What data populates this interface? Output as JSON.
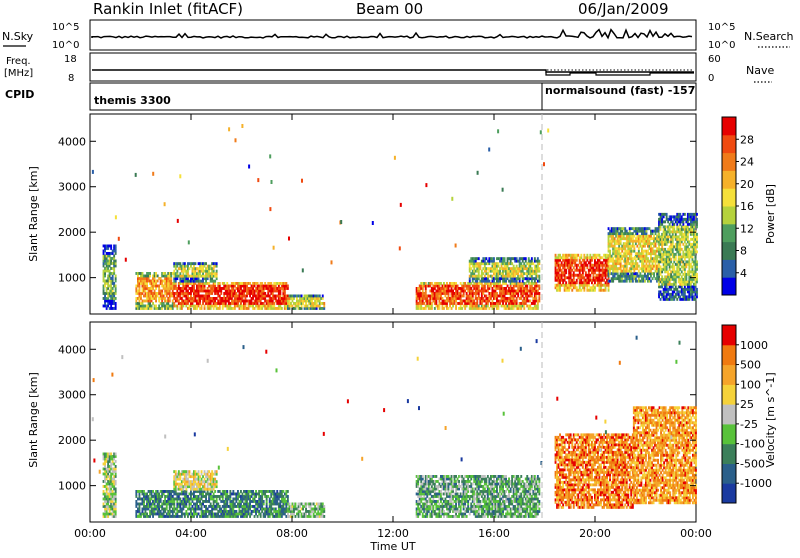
{
  "header": {
    "title": "Rankin Inlet (fitACF)",
    "beam": "Beam 00",
    "date": "06/Jan/2009"
  },
  "noise_panel": {
    "left_label": "N.Sky",
    "right_label": "N.Search",
    "left_ticks": [
      "10^5",
      "10^0"
    ],
    "right_ticks": [
      "10^5",
      "10^0"
    ]
  },
  "freq_panel": {
    "left_label_line1": "Freq.",
    "left_label_line2": "[MHz]",
    "cpid_label": "CPID",
    "right_label": "Nave",
    "left_ticks": [
      "18",
      "8"
    ],
    "right_ticks": [
      "60",
      "0"
    ],
    "cpid_left": "themis 3300",
    "cpid_right": "normalsound (fast) -157"
  },
  "chart_data": [
    {
      "type": "heatmap",
      "name": "Power",
      "ylabel": "Slant Range [km]",
      "xlim": [
        0,
        24
      ],
      "ylim": [
        200,
        4600
      ],
      "yticks": [
        1000,
        2000,
        3000,
        4000
      ],
      "colorbar_label": "Power [dB]",
      "colorbar_ticks": [
        "28",
        "24",
        "20",
        "16",
        "12",
        "8",
        "4"
      ],
      "colorbar_colors": [
        "#0000e6",
        "#2a5fa8",
        "#3a7a54",
        "#4e9e5e",
        "#b5d23c",
        "#f5e03a",
        "#f5b12a",
        "#f07b1a",
        "#f04a10",
        "#e60000"
      ],
      "bands": [
        {
          "t0": 0.5,
          "t1": 1.0,
          "r0": 300,
          "r1": 1700,
          "level": 0.35
        },
        {
          "t0": 1.8,
          "t1": 3.3,
          "r0": 300,
          "r1": 1100,
          "level": 0.7
        },
        {
          "t0": 3.3,
          "t1": 7.8,
          "r0": 300,
          "r1": 900,
          "level": 0.9
        },
        {
          "t0": 3.3,
          "t1": 5.0,
          "r0": 900,
          "r1": 1300,
          "level": 0.5
        },
        {
          "t0": 7.8,
          "t1": 9.3,
          "r0": 300,
          "r1": 600,
          "level": 0.55
        },
        {
          "t0": 12.9,
          "t1": 17.8,
          "r0": 300,
          "r1": 900,
          "level": 0.85
        },
        {
          "t0": 15.0,
          "t1": 17.8,
          "r0": 900,
          "r1": 1400,
          "level": 0.5
        },
        {
          "t0": 18.4,
          "t1": 20.5,
          "r0": 700,
          "r1": 1500,
          "level": 0.9
        },
        {
          "t0": 20.5,
          "t1": 22.5,
          "r0": 900,
          "r1": 2100,
          "level": 0.55
        },
        {
          "t0": 22.5,
          "t1": 24.0,
          "r0": 500,
          "r1": 2400,
          "level": 0.45
        }
      ]
    },
    {
      "type": "heatmap",
      "name": "Velocity",
      "ylabel": "Slant Range [km]",
      "xlabel": "Time UT",
      "xlim": [
        0,
        24
      ],
      "ylim": [
        200,
        4600
      ],
      "yticks": [
        1000,
        2000,
        3000,
        4000
      ],
      "xticks": [
        "00:00",
        "04:00",
        "08:00",
        "12:00",
        "16:00",
        "20:00",
        "00:00"
      ],
      "colorbar_label": "Velocity [m s^-1]",
      "colorbar_ticks": [
        "1000",
        "500",
        "100",
        "25",
        "-25",
        "-100",
        "-500",
        "-1000"
      ],
      "colorbar_colors": [
        "#1a3aa0",
        "#2a5f8a",
        "#3b7f5a",
        "#58c23a",
        "#c0c0c0",
        "#f5d23a",
        "#f5a42a",
        "#f07a10",
        "#e60000"
      ],
      "bands": [
        {
          "t0": 0.5,
          "t1": 1.0,
          "r0": 300,
          "r1": 1700,
          "level": 0.45
        },
        {
          "t0": 1.8,
          "t1": 7.8,
          "r0": 300,
          "r1": 900,
          "level": 0.25
        },
        {
          "t0": 3.3,
          "t1": 5.0,
          "r0": 900,
          "r1": 1300,
          "level": 0.55
        },
        {
          "t0": 7.8,
          "t1": 9.3,
          "r0": 300,
          "r1": 600,
          "level": 0.4
        },
        {
          "t0": 12.9,
          "t1": 17.8,
          "r0": 300,
          "r1": 1200,
          "level": 0.35
        },
        {
          "t0": 18.4,
          "t1": 21.5,
          "r0": 500,
          "r1": 2100,
          "level": 0.8
        },
        {
          "t0": 21.5,
          "t1": 24.0,
          "r0": 600,
          "r1": 2700,
          "level": 0.75
        }
      ]
    }
  ]
}
